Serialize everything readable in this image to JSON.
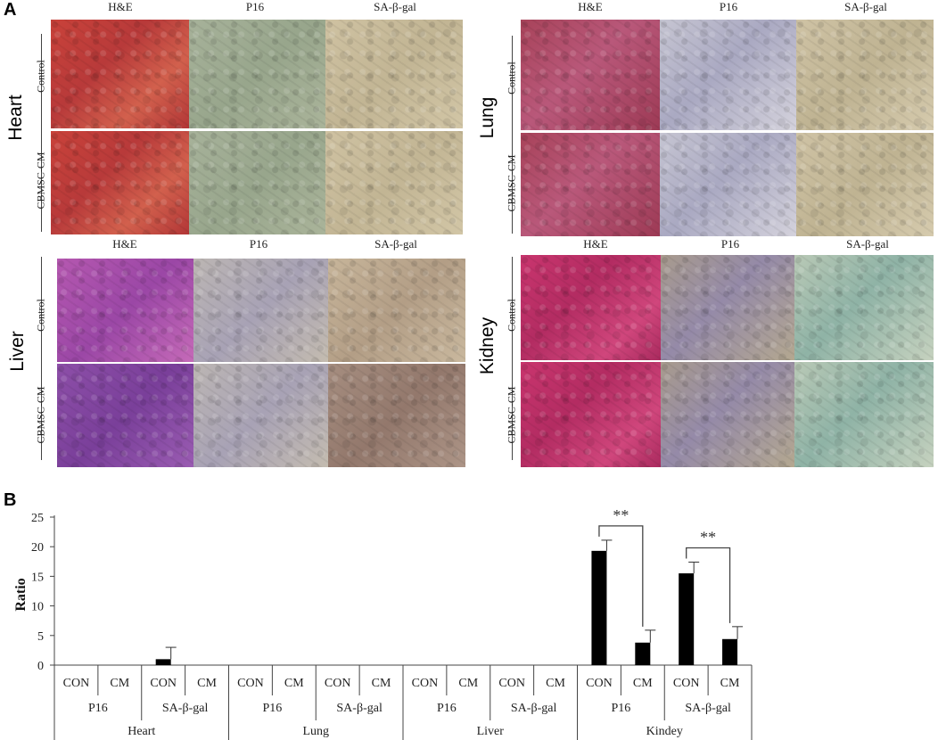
{
  "panel_a_letter": "A",
  "panel_b_letter": "B",
  "stain_headers": [
    "H&E",
    "P16",
    "SA-β-gal"
  ],
  "row_labels": [
    "Control",
    "CBMSC-CM"
  ],
  "organs": [
    "Heart",
    "Lung",
    "Liver",
    "Kidney"
  ],
  "colors": {
    "bar": "#000000",
    "axis": "#444444"
  },
  "chart_data": {
    "type": "bar",
    "title": "",
    "xlabel": "",
    "ylabel": "Ratio",
    "ylim": [
      0,
      25
    ],
    "yticks": [
      0,
      5,
      10,
      15,
      20,
      25
    ],
    "grid": false,
    "categories": [
      "CON",
      "CM",
      "CON",
      "CM",
      "CON",
      "CM",
      "CON",
      "CM",
      "CON",
      "CM",
      "CON",
      "CM",
      "CON",
      "CM",
      "CON",
      "CM"
    ],
    "stain_groups": [
      "P16",
      "SA-β-gal",
      "P16",
      "SA-β-gal",
      "P16",
      "SA-β-gal",
      "P16",
      "SA-β-gal"
    ],
    "organ_groups": [
      "Heart",
      "Lung",
      "Liver",
      "Kindey"
    ],
    "values": [
      0,
      0,
      1,
      0,
      0,
      0,
      0,
      0,
      0,
      0,
      0,
      0,
      19.3,
      3.8,
      15.5,
      4.4
    ],
    "errors": [
      0,
      0,
      2,
      0,
      0,
      0,
      0,
      0,
      0,
      0,
      0,
      0,
      1.8,
      2.1,
      1.9,
      2.1
    ],
    "significance": [
      {
        "from": 12,
        "to": 13,
        "label": "**"
      },
      {
        "from": 14,
        "to": 15,
        "label": "**"
      }
    ]
  }
}
